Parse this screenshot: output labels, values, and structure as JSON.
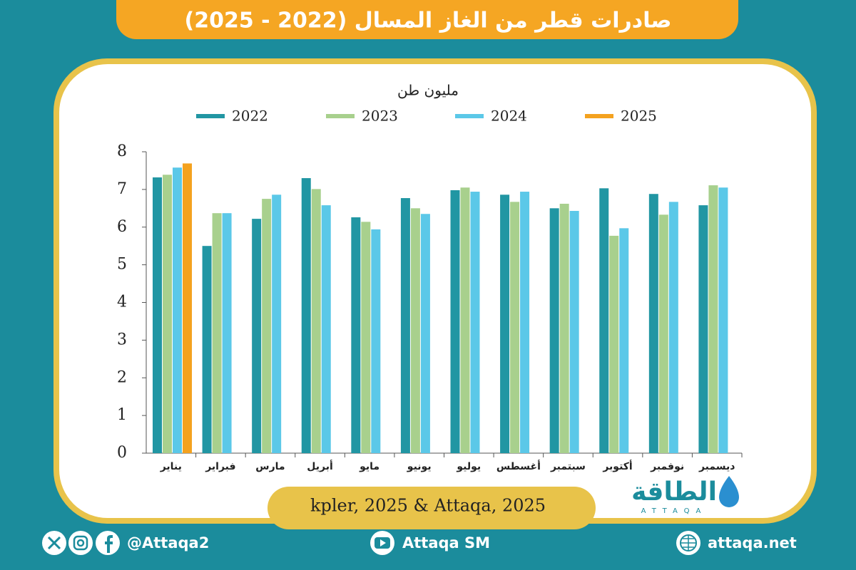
{
  "chart_data": {
    "type": "bar",
    "title": "صادرات قطر من الغاز المسال (2022 - 2025)",
    "y_label": "مليون طن",
    "categories": [
      "يناير",
      "فبراير",
      "مارس",
      "أبريل",
      "مايو",
      "يونيو",
      "يوليو",
      "أغسطس",
      "سبتمبر",
      "أكتوبر",
      "نوفمبر",
      "ديسمبر"
    ],
    "series": [
      {
        "name": "2022",
        "color": "#2196a3",
        "values": [
          7.32,
          5.5,
          6.22,
          7.3,
          6.26,
          6.77,
          6.98,
          6.86,
          6.5,
          7.03,
          6.88,
          6.58
        ]
      },
      {
        "name": "2023",
        "color": "#a8d08d",
        "values": [
          7.39,
          6.37,
          6.75,
          7.01,
          6.14,
          6.5,
          7.05,
          6.67,
          6.62,
          5.77,
          6.33,
          7.11
        ]
      },
      {
        "name": "2024",
        "color": "#5bc8e8",
        "values": [
          7.58,
          6.37,
          6.86,
          6.58,
          5.94,
          6.35,
          6.94,
          6.94,
          6.43,
          5.97,
          6.67,
          7.05
        ]
      },
      {
        "name": "2025",
        "color": "#f4a21f",
        "values": [
          7.69,
          null,
          null,
          null,
          null,
          null,
          null,
          null,
          null,
          null,
          null,
          null
        ]
      }
    ],
    "ylim": [
      0,
      8
    ],
    "yticks": [
      0,
      1,
      2,
      3,
      4,
      5,
      6,
      7,
      8
    ],
    "grid": false,
    "legend": "top",
    "source": "kpler, 2025 & Attaqa, 2025"
  },
  "logo": {
    "arabic": "الطاقة",
    "latin": "ATTAQA"
  },
  "footer": {
    "handle": "@Attaqa2",
    "youtube": "Attaqa SM",
    "website": "attaqa.net"
  }
}
